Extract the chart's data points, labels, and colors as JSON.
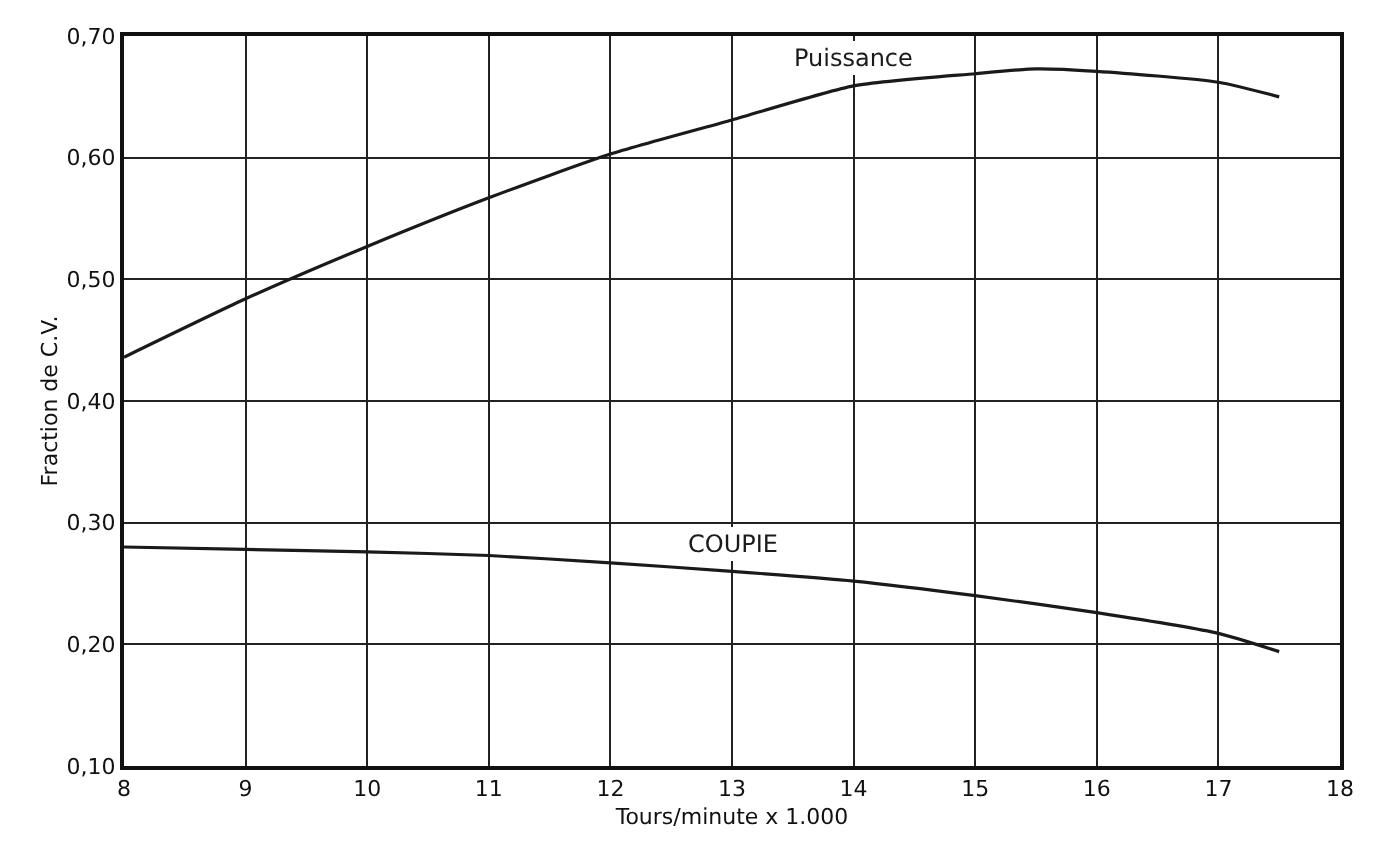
{
  "chart_data": {
    "type": "line",
    "xlabel": "Tours/minute x 1.000",
    "ylabel": "Fraction de C.V.",
    "x": [
      8,
      9,
      10,
      11,
      12,
      13,
      14,
      15,
      15.5,
      16,
      17,
      17.5
    ],
    "series": [
      {
        "name": "Puissance",
        "color": "#1a1a1a",
        "values": [
          0.436,
          0.484,
          0.527,
          0.567,
          0.603,
          0.631,
          0.659,
          0.669,
          0.673,
          0.671,
          0.662,
          0.65
        ]
      },
      {
        "name": "COUPIE",
        "color": "#1a1a1a",
        "x": [
          8,
          9,
          10,
          11,
          12,
          13,
          14,
          15,
          16,
          17,
          17.5
        ],
        "values": [
          0.28,
          0.278,
          0.276,
          0.273,
          0.267,
          0.26,
          0.252,
          0.24,
          0.226,
          0.209,
          0.194
        ]
      }
    ],
    "xlim": [
      8,
      18
    ],
    "xticks": [
      8,
      9,
      10,
      11,
      12,
      13,
      14,
      15,
      16,
      17,
      18
    ],
    "ylim": [
      0.1,
      0.7
    ],
    "yticks": [
      {
        "value": 0.1,
        "label": "0,10"
      },
      {
        "value": 0.2,
        "label": "0,20"
      },
      {
        "value": 0.3,
        "label": "0,30"
      },
      {
        "value": 0.4,
        "label": "0,40"
      },
      {
        "value": 0.5,
        "label": "0,50"
      },
      {
        "value": 0.6,
        "label": "0,60"
      },
      {
        "value": 0.7,
        "label": "0,70"
      }
    ],
    "grid": true,
    "legend": false,
    "marker": "none",
    "line_style": "solid"
  }
}
